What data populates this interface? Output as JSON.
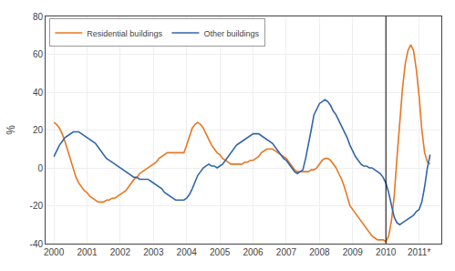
{
  "chart_data": {
    "type": "line",
    "ylabel": "%",
    "x": [
      2000.0,
      2000.083,
      2000.167,
      2000.25,
      2000.333,
      2000.417,
      2000.5,
      2000.583,
      2000.667,
      2000.75,
      2000.833,
      2000.917,
      2001.0,
      2001.083,
      2001.167,
      2001.25,
      2001.333,
      2001.417,
      2001.5,
      2001.583,
      2001.667,
      2001.75,
      2001.833,
      2001.917,
      2002.0,
      2002.083,
      2002.167,
      2002.25,
      2002.333,
      2002.417,
      2002.5,
      2002.583,
      2002.667,
      2002.75,
      2002.833,
      2002.917,
      2003.0,
      2003.083,
      2003.167,
      2003.25,
      2003.333,
      2003.417,
      2003.5,
      2003.583,
      2003.667,
      2003.75,
      2003.833,
      2003.917,
      2004.0,
      2004.083,
      2004.167,
      2004.25,
      2004.333,
      2004.417,
      2004.5,
      2004.583,
      2004.667,
      2004.75,
      2004.833,
      2004.917,
      2005.0,
      2005.083,
      2005.167,
      2005.25,
      2005.333,
      2005.417,
      2005.5,
      2005.583,
      2005.667,
      2005.75,
      2005.833,
      2005.917,
      2006.0,
      2006.083,
      2006.167,
      2006.25,
      2006.333,
      2006.417,
      2006.5,
      2006.583,
      2006.667,
      2006.75,
      2006.833,
      2006.917,
      2007.0,
      2007.083,
      2007.167,
      2007.25,
      2007.333,
      2007.417,
      2007.5,
      2007.583,
      2007.667,
      2007.75,
      2007.833,
      2007.917,
      2008.0,
      2008.083,
      2008.167,
      2008.25,
      2008.333,
      2008.417,
      2008.5,
      2008.583,
      2008.667,
      2008.75,
      2008.833,
      2008.917,
      2009.0,
      2009.083,
      2009.167,
      2009.25,
      2009.333,
      2009.417,
      2009.5,
      2009.583,
      2009.667,
      2009.75,
      2009.833,
      2009.917,
      2010.0,
      2010.083,
      2010.167,
      2010.25,
      2010.333,
      2010.417,
      2010.5,
      2010.583,
      2010.667,
      2010.75,
      2010.833,
      2010.917,
      2011.0,
      2011.083,
      2011.167,
      2011.25,
      2011.333
    ],
    "series": [
      {
        "name": "Residential buildings",
        "color": "#E87722",
        "values": [
          24,
          23,
          21,
          18,
          14,
          9,
          4,
          -1,
          -5,
          -8,
          -10,
          -12,
          -13,
          -15,
          -16,
          -17,
          -18,
          -18,
          -18,
          -17,
          -17,
          -16,
          -16,
          -15,
          -14,
          -13,
          -12,
          -10,
          -8,
          -6,
          -5,
          -3,
          -2,
          -1,
          0,
          1,
          2,
          3,
          5,
          6,
          7,
          8,
          8,
          8,
          8,
          8,
          8,
          8,
          12,
          17,
          21,
          23,
          24,
          23,
          21,
          18,
          15,
          12,
          10,
          8,
          7,
          5,
          4,
          3,
          2,
          2,
          2,
          2,
          2,
          3,
          3,
          4,
          4,
          5,
          6,
          8,
          9,
          10,
          10,
          10,
          9,
          8,
          7,
          6,
          5,
          3,
          1,
          -1,
          -2,
          -2,
          -2,
          -2,
          -2,
          -1,
          -1,
          0,
          2,
          4,
          5,
          5,
          4,
          2,
          0,
          -3,
          -6,
          -10,
          -15,
          -20,
          -22,
          -24,
          -26,
          -28,
          -30,
          -32,
          -34,
          -36,
          -37,
          -38,
          -38,
          -38,
          -39,
          -36,
          -28,
          -15,
          5,
          25,
          42,
          55,
          62,
          65,
          62,
          52,
          38,
          20,
          8,
          3,
          2
        ]
      },
      {
        "name": "Other buildings",
        "color": "#3366AA",
        "values": [
          6,
          9,
          12,
          14,
          16,
          17,
          18,
          19,
          19,
          19,
          18,
          17,
          16,
          15,
          14,
          13,
          11,
          9,
          7,
          5,
          4,
          3,
          2,
          1,
          0,
          -1,
          -2,
          -3,
          -4,
          -5,
          -5,
          -6,
          -6,
          -6,
          -6,
          -7,
          -8,
          -9,
          -10,
          -11,
          -13,
          -14,
          -15,
          -16,
          -17,
          -17,
          -17,
          -17,
          -16,
          -14,
          -11,
          -7,
          -4,
          -2,
          0,
          1,
          2,
          1,
          1,
          0,
          1,
          2,
          4,
          6,
          8,
          10,
          12,
          13,
          14,
          15,
          16,
          17,
          18,
          18,
          18,
          17,
          16,
          15,
          14,
          13,
          11,
          9,
          7,
          5,
          4,
          2,
          0,
          -2,
          -3,
          -2,
          -1,
          5,
          12,
          20,
          28,
          31,
          34,
          35,
          36,
          35,
          33,
          30,
          28,
          25,
          22,
          19,
          16,
          12,
          9,
          6,
          4,
          2,
          1,
          1,
          0,
          0,
          -1,
          -2,
          -3,
          -5,
          -8,
          -13,
          -20,
          -26,
          -29,
          -30,
          -29,
          -28,
          -27,
          -26,
          -25,
          -23,
          -22,
          -18,
          -10,
          0,
          7
        ]
      }
    ],
    "vline": 2010.0,
    "xlim": [
      1999.75,
      2011.67
    ],
    "xticks": [
      2000,
      2001,
      2002,
      2003,
      2004,
      2005,
      2006,
      2007,
      2008,
      2009,
      2010,
      {
        "value": 2011,
        "label": "2011*"
      }
    ],
    "ylim": [
      -40,
      80
    ],
    "yticks": [
      -40,
      -20,
      0,
      20,
      40,
      60,
      80
    ],
    "grid": true,
    "legend": "upper left"
  }
}
